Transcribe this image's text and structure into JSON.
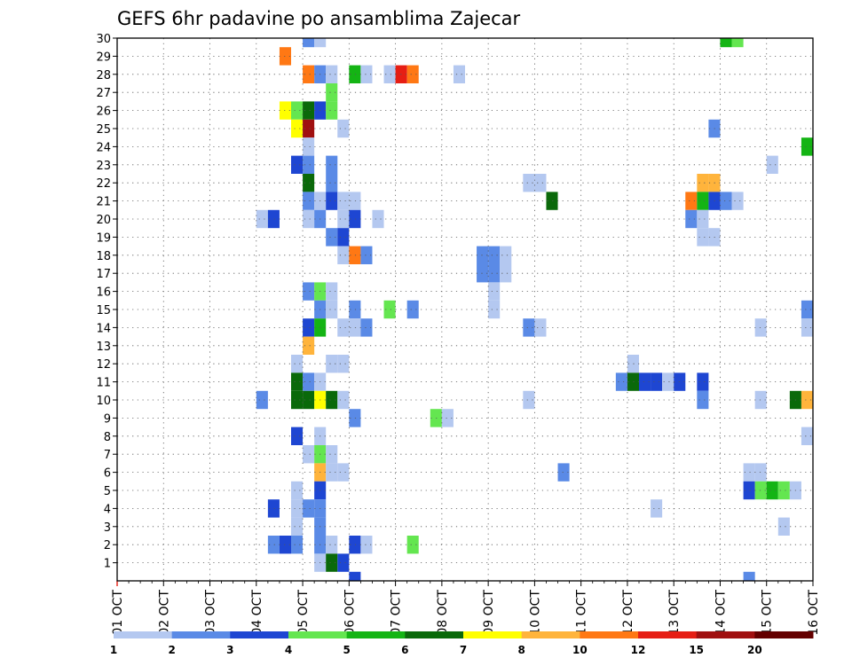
{
  "chart_data": {
    "type": "heatmap",
    "title": "GEFS 6hr padavine po ansamblima Zajecar",
    "xlabel": "",
    "ylabel": "",
    "x_ticks": [
      "01 OCT",
      "02 OCT",
      "03 OCT",
      "04 OCT",
      "05 OCT",
      "06 OCT",
      "07 OCT",
      "08 OCT",
      "09 OCT",
      "10 OCT",
      "11 OCT",
      "12 OCT",
      "13 OCT",
      "14 OCT",
      "15 OCT",
      "16 OCT"
    ],
    "y_ticks": [
      1,
      2,
      3,
      4,
      5,
      6,
      7,
      8,
      9,
      10,
      11,
      12,
      13,
      14,
      15,
      16,
      17,
      18,
      19,
      20,
      21,
      22,
      23,
      24,
      25,
      26,
      27,
      28,
      29,
      30
    ],
    "x_range_days": [
      1,
      16
    ],
    "y_range": [
      0,
      30
    ],
    "grid": true,
    "colorbar": {
      "levels": [
        "1",
        "2",
        "3",
        "4",
        "5",
        "6",
        "7",
        "8",
        "10",
        "12",
        "15",
        "20"
      ],
      "colors": [
        "#b4c8f0",
        "#5a8ae6",
        "#1e46d2",
        "#64e650",
        "#14b414",
        "#0a690a",
        "#ffff00",
        "#ffb43c",
        "#ff7814",
        "#e61e14",
        "#a01010",
        "#640000"
      ]
    },
    "cells_note": "each cell: [day_start, member, color_index]",
    "cells": [
      [
        5.0,
        30,
        1
      ],
      [
        5.25,
        30,
        0
      ],
      [
        14.0,
        30,
        4
      ],
      [
        14.25,
        30,
        3
      ],
      [
        4.5,
        29,
        8
      ],
      [
        5.0,
        28,
        8
      ],
      [
        5.25,
        28,
        1
      ],
      [
        5.5,
        28,
        0
      ],
      [
        6.0,
        28,
        4
      ],
      [
        6.25,
        28,
        0
      ],
      [
        6.75,
        28,
        0
      ],
      [
        7.0,
        28,
        9
      ],
      [
        7.25,
        28,
        8
      ],
      [
        8.25,
        28,
        0
      ],
      [
        5.5,
        27,
        3
      ],
      [
        4.5,
        26,
        6
      ],
      [
        4.75,
        26,
        3
      ],
      [
        5.0,
        26,
        5
      ],
      [
        5.25,
        26,
        2
      ],
      [
        5.5,
        26,
        3
      ],
      [
        4.75,
        25,
        6
      ],
      [
        5.0,
        25,
        10
      ],
      [
        5.75,
        25,
        0
      ],
      [
        13.75,
        25,
        1
      ],
      [
        5.0,
        24,
        0
      ],
      [
        15.75,
        24,
        4
      ],
      [
        4.75,
        23,
        2
      ],
      [
        5.0,
        23,
        1
      ],
      [
        5.5,
        23,
        1
      ],
      [
        15.0,
        23,
        0
      ],
      [
        5.0,
        22,
        5
      ],
      [
        5.5,
        22,
        1
      ],
      [
        9.75,
        22,
        0
      ],
      [
        10.0,
        22,
        0
      ],
      [
        13.5,
        22,
        7
      ],
      [
        13.75,
        22,
        7
      ],
      [
        5.0,
        21,
        1
      ],
      [
        5.25,
        21,
        0
      ],
      [
        5.5,
        21,
        2
      ],
      [
        5.75,
        21,
        0
      ],
      [
        6.0,
        21,
        0
      ],
      [
        10.25,
        21,
        5
      ],
      [
        13.25,
        21,
        8
      ],
      [
        13.5,
        21,
        4
      ],
      [
        13.75,
        21,
        2
      ],
      [
        14.0,
        21,
        1
      ],
      [
        14.25,
        21,
        0
      ],
      [
        4.0,
        20,
        0
      ],
      [
        4.25,
        20,
        2
      ],
      [
        5.0,
        20,
        0
      ],
      [
        5.25,
        20,
        1
      ],
      [
        5.75,
        20,
        0
      ],
      [
        6.0,
        20,
        2
      ],
      [
        6.5,
        20,
        0
      ],
      [
        13.25,
        20,
        1
      ],
      [
        13.5,
        20,
        0
      ],
      [
        5.5,
        19,
        1
      ],
      [
        5.75,
        19,
        2
      ],
      [
        13.5,
        19,
        0
      ],
      [
        13.75,
        19,
        0
      ],
      [
        5.75,
        18,
        0
      ],
      [
        6.0,
        18,
        8
      ],
      [
        6.25,
        18,
        1
      ],
      [
        8.75,
        18,
        1
      ],
      [
        9.0,
        18,
        1
      ],
      [
        9.25,
        18,
        0
      ],
      [
        8.75,
        17,
        1
      ],
      [
        9.0,
        17,
        1
      ],
      [
        9.25,
        17,
        0
      ],
      [
        5.0,
        16,
        1
      ],
      [
        5.25,
        16,
        3
      ],
      [
        5.5,
        16,
        0
      ],
      [
        9.0,
        16,
        0
      ],
      [
        5.25,
        15,
        1
      ],
      [
        5.5,
        15,
        0
      ],
      [
        6.0,
        15,
        1
      ],
      [
        6.75,
        15,
        3
      ],
      [
        7.25,
        15,
        1
      ],
      [
        9.0,
        15,
        0
      ],
      [
        15.75,
        15,
        1
      ],
      [
        5.0,
        14,
        2
      ],
      [
        5.25,
        14,
        4
      ],
      [
        5.75,
        14,
        0
      ],
      [
        6.0,
        14,
        0
      ],
      [
        6.25,
        14,
        1
      ],
      [
        9.75,
        14,
        1
      ],
      [
        10.0,
        14,
        0
      ],
      [
        14.75,
        14,
        0
      ],
      [
        15.75,
        14,
        0
      ],
      [
        5.0,
        13,
        7
      ],
      [
        4.75,
        12,
        0
      ],
      [
        5.5,
        12,
        0
      ],
      [
        5.75,
        12,
        0
      ],
      [
        12.0,
        12,
        0
      ],
      [
        4.75,
        11,
        5
      ],
      [
        5.0,
        11,
        1
      ],
      [
        5.25,
        11,
        0
      ],
      [
        11.75,
        11,
        1
      ],
      [
        12.0,
        11,
        5
      ],
      [
        12.25,
        11,
        2
      ],
      [
        12.5,
        11,
        2
      ],
      [
        12.75,
        11,
        0
      ],
      [
        13.0,
        11,
        2
      ],
      [
        13.5,
        11,
        2
      ],
      [
        4.0,
        10,
        1
      ],
      [
        4.75,
        10,
        5
      ],
      [
        5.0,
        10,
        5
      ],
      [
        5.25,
        10,
        6
      ],
      [
        5.5,
        10,
        5
      ],
      [
        5.75,
        10,
        0
      ],
      [
        9.75,
        10,
        0
      ],
      [
        13.5,
        10,
        1
      ],
      [
        14.75,
        10,
        0
      ],
      [
        15.5,
        10,
        5
      ],
      [
        15.75,
        10,
        7
      ],
      [
        6.0,
        9,
        1
      ],
      [
        7.75,
        9,
        3
      ],
      [
        8.0,
        9,
        0
      ],
      [
        4.75,
        8,
        2
      ],
      [
        5.25,
        8,
        0
      ],
      [
        15.75,
        8,
        0
      ],
      [
        5.0,
        7,
        0
      ],
      [
        5.25,
        7,
        3
      ],
      [
        5.5,
        7,
        0
      ],
      [
        5.25,
        6,
        7
      ],
      [
        5.5,
        6,
        0
      ],
      [
        5.75,
        6,
        0
      ],
      [
        10.5,
        6,
        1
      ],
      [
        14.5,
        6,
        0
      ],
      [
        14.75,
        6,
        0
      ],
      [
        4.75,
        5,
        0
      ],
      [
        5.25,
        5,
        2
      ],
      [
        14.5,
        5,
        2
      ],
      [
        14.75,
        5,
        3
      ],
      [
        15.0,
        5,
        4
      ],
      [
        15.25,
        5,
        3
      ],
      [
        15.5,
        5,
        0
      ],
      [
        4.25,
        4,
        2
      ],
      [
        4.75,
        4,
        0
      ],
      [
        5.0,
        4,
        1
      ],
      [
        5.25,
        4,
        1
      ],
      [
        12.5,
        4,
        0
      ],
      [
        4.75,
        3,
        0
      ],
      [
        5.25,
        3,
        1
      ],
      [
        15.25,
        3,
        0
      ],
      [
        4.25,
        2,
        1
      ],
      [
        4.5,
        2,
        2
      ],
      [
        4.75,
        2,
        1
      ],
      [
        5.25,
        2,
        1
      ],
      [
        5.5,
        2,
        0
      ],
      [
        6.0,
        2,
        2
      ],
      [
        6.25,
        2,
        0
      ],
      [
        7.25,
        2,
        3
      ],
      [
        5.25,
        1,
        0
      ],
      [
        5.5,
        1,
        5
      ],
      [
        5.75,
        1,
        2
      ],
      [
        6.0,
        0,
        2
      ],
      [
        14.5,
        0,
        1
      ]
    ]
  }
}
